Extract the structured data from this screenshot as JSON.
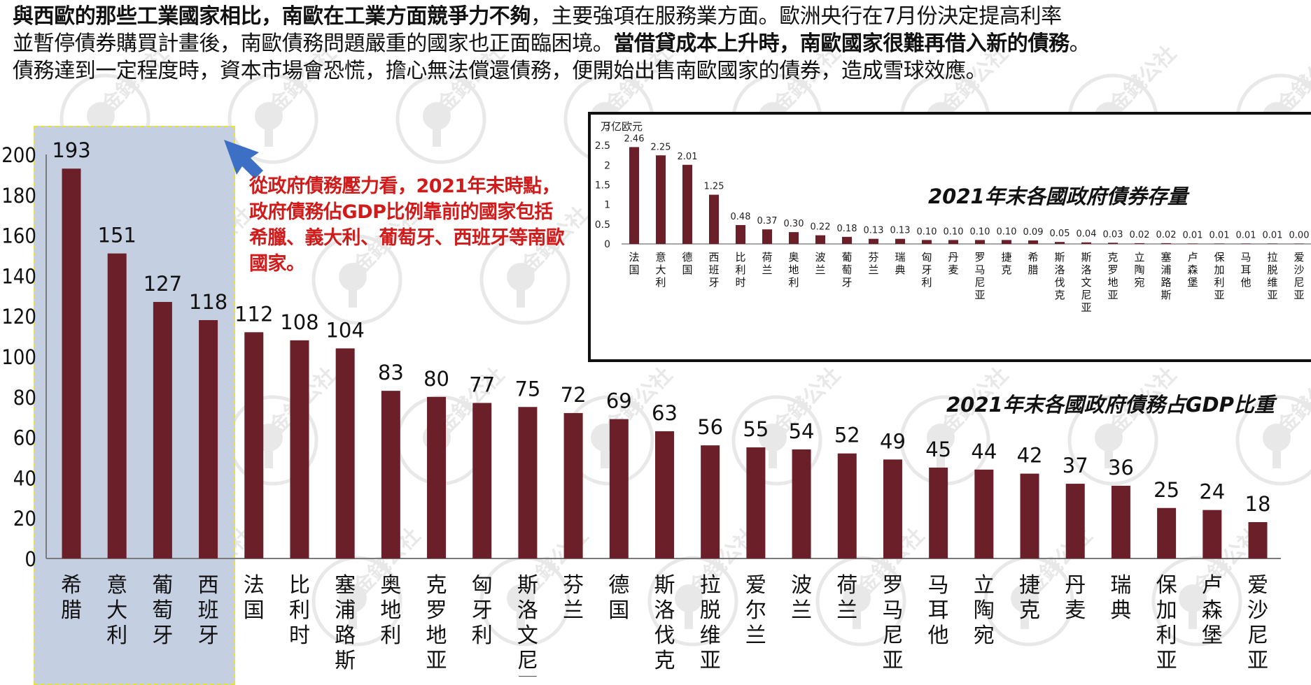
{
  "paragraph": {
    "line1_bold": "與西歐的那些工業國家相比，南歐在工業方面競爭力不夠",
    "line1_rest": "，主要強項在服務業方面。歐洲央行在7月份決定提高利率",
    "line2_start": "並暫停債券購買計畫後，南歐債務問題嚴重的國家也正面臨困境。",
    "line2_bold": "當借貸成本上升時，南歐國家很難再借入新的債務",
    "line2_end": "。",
    "line3": "債務達到一定程度時，資本市場會恐慌，擔心無法償還債務，便開始出售南歐國家的債券，造成雪球效應。"
  },
  "callout_text": "從政府債務壓力看，2021年末時點，政府債務佔GDP比例靠前的國家包括希臘、義大利、葡萄牙、西班牙等南歐國家。",
  "watermark_text": "金錢公社",
  "colors": {
    "bar": "#6b1f28",
    "highlight": "#c5cfe2",
    "callout": "#d11a1a",
    "arrow": "#3d6fc4"
  },
  "chart_data": [
    {
      "type": "bar",
      "title": "2021年末各國政府債務占GDP比重",
      "categories": [
        "希腊",
        "意大利",
        "葡萄牙",
        "西班牙",
        "法国",
        "比利时",
        "塞浦路斯",
        "奥地利",
        "克罗地亚",
        "匈牙利",
        "斯洛文尼亚",
        "芬兰",
        "德国",
        "斯洛伐克",
        "拉脱维亚",
        "爱尔兰",
        "波兰",
        "荷兰",
        "罗马尼亚",
        "马耳他",
        "立陶宛",
        "捷克",
        "丹麦",
        "瑞典",
        "保加利亚",
        "卢森堡",
        "爱沙尼亚"
      ],
      "values": [
        193,
        151,
        127,
        118,
        112,
        108,
        104,
        83,
        80,
        77,
        75,
        72,
        69,
        63,
        56,
        55,
        54,
        52,
        49,
        45,
        44,
        42,
        37,
        36,
        25,
        24,
        18
      ],
      "y_ticks": [
        "0",
        "20",
        "40",
        "60",
        "80",
        "100",
        "120",
        "140",
        "160",
        "180",
        "200"
      ],
      "ylim": [
        0,
        200
      ],
      "highlighted_categories": [
        "希腊",
        "意大利",
        "葡萄牙",
        "西班牙"
      ]
    },
    {
      "type": "bar",
      "title": "2021年末各國政府債券存量",
      "unit": "万亿欧元",
      "categories": [
        "法国",
        "意大利",
        "德国",
        "西班牙",
        "比利时",
        "荷兰",
        "奥地利",
        "波兰",
        "葡萄牙",
        "芬兰",
        "瑞典",
        "匈牙利",
        "丹麦",
        "罗马尼亚",
        "捷克",
        "希腊",
        "斯洛伐克",
        "斯洛文尼亚",
        "克罗地亚",
        "立陶宛",
        "塞浦路斯",
        "卢森堡",
        "保加利亚",
        "马耳他",
        "拉脱维亚",
        "爱沙尼亚"
      ],
      "values": [
        2.46,
        2.25,
        2.01,
        1.25,
        0.48,
        0.37,
        0.3,
        0.22,
        0.18,
        0.13,
        0.13,
        0.1,
        0.1,
        0.1,
        0.1,
        0.09,
        0.05,
        0.04,
        0.03,
        0.02,
        0.02,
        0.01,
        0.01,
        0.01,
        0.01,
        0.0
      ],
      "value_labels": [
        "2.46",
        "2.25",
        "2.01",
        "1.25",
        "0.48",
        "0.37",
        "0.30",
        "0.22",
        "0.18",
        "0.13",
        "0.13",
        "0.10",
        "0.10",
        "0.10",
        "0.10",
        "0.09",
        "0.05",
        "0.04",
        "0.03",
        "0.02",
        "0.02",
        "0.01",
        "0.01",
        "0.01",
        "0.01",
        "0.00"
      ],
      "y_ticks": [
        "0",
        "0.5",
        "1",
        "1.5",
        "2",
        "2.5",
        "3"
      ],
      "ylim": [
        0,
        3
      ]
    }
  ]
}
